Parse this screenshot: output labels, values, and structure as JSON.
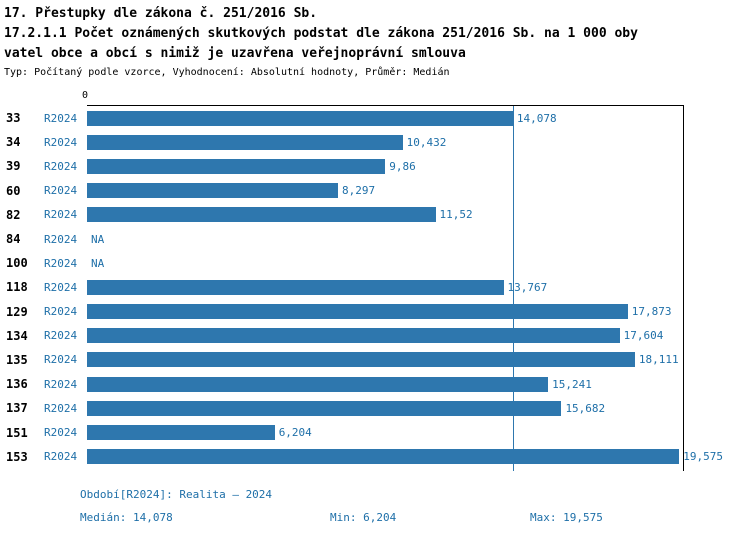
{
  "header": {
    "line1": "17. Přestupky dle zákona č. 251/2016 Sb.",
    "line2": "17.2.1.1 Počet oznámených skutkových podstat dle zákona 251/2016 Sb. na 1 000 oby",
    "line3": "vatel obce a obcí s nimiž je uzavřena veřejnoprávní smlouva",
    "meta": "Typ: Počítaný podle vzorce, Vyhodnocení: Absolutní hodnoty, Průměr: Medián"
  },
  "colors": {
    "bar": "#2e77ae",
    "accent_text": "#1e6fa8",
    "axis": "#000000"
  },
  "chart_data": {
    "type": "bar",
    "orientation": "horizontal",
    "title": "17.2.1.1 Počet oznámených skutkových podstat dle zákona 251/2016 Sb. na 1 000 obyvatel obce a obcí s nimiž je uzavřena veřejnoprávní smlouva",
    "categories": [
      "33",
      "34",
      "39",
      "60",
      "82",
      "84",
      "100",
      "118",
      "129",
      "134",
      "135",
      "136",
      "137",
      "151",
      "153"
    ],
    "series_label": "R2024",
    "values": [
      14.078,
      10.432,
      9.86,
      8.297,
      11.52,
      null,
      null,
      13.767,
      17.873,
      17.604,
      18.111,
      15.241,
      15.682,
      6.204,
      19.575
    ],
    "value_labels": [
      "14,078",
      "10,432",
      "9,86",
      "8,297",
      "11,52",
      "NA",
      "NA",
      "13,767",
      "17,873",
      "17,604",
      "18,111",
      "15,241",
      "15,682",
      "6,204",
      "19,575"
    ],
    "x_tick_labels": [
      "0"
    ],
    "xlim": [
      0,
      19.7
    ],
    "median_value": 14.078,
    "grid": false,
    "legend_position": "bottom"
  },
  "footer": {
    "legend": "Období[R2024]: Realita – 2024",
    "median": "Medián: 14,078",
    "min": "Min: 6,204",
    "max": "Max: 19,575"
  }
}
